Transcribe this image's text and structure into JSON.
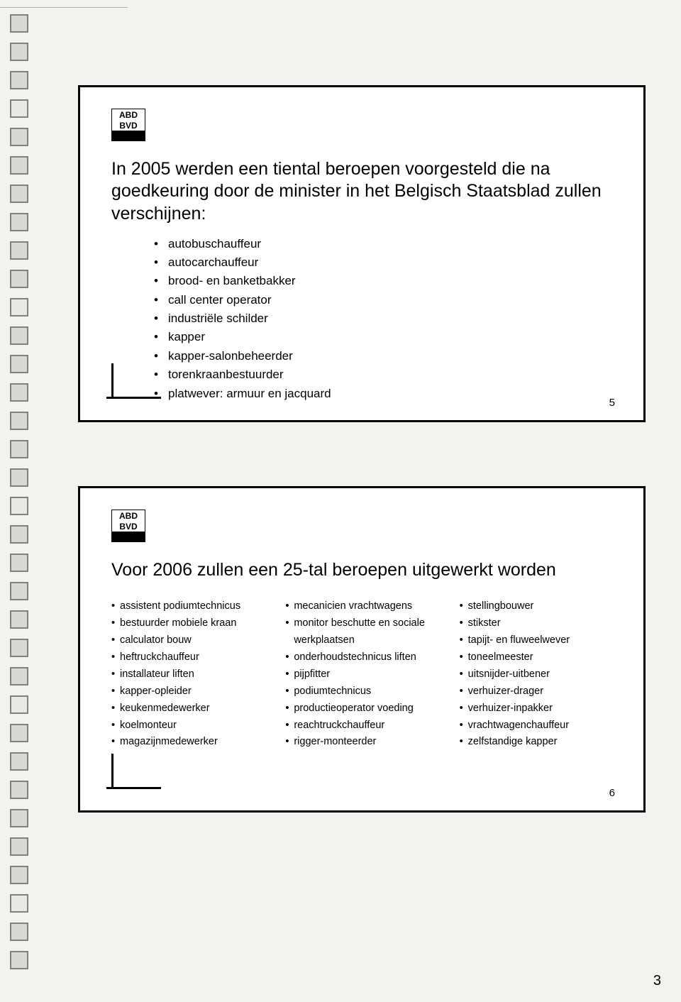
{
  "page_number": "3",
  "logo": {
    "line1": "ABD",
    "line2": "BVD"
  },
  "punch_hole_count": 34,
  "slide1": {
    "number": "5",
    "title": "In 2005 werden een tiental beroepen voorgesteld die na goedkeuring door de minister in het Belgisch Staatsblad zullen verschijnen:",
    "items": [
      "autobuschauffeur",
      "autocarchauffeur",
      "brood- en banketbakker",
      "call center operator",
      "industriële schilder",
      "kapper",
      "kapper-salonbeheerder",
      "torenkraanbestuurder",
      "platwever: armuur en jacquard"
    ]
  },
  "slide2": {
    "number": "6",
    "title": "Voor 2006 zullen een 25-tal beroepen uitgewerkt worden",
    "col1": [
      "assistent podiumtechnicus",
      "bestuurder mobiele kraan",
      "calculator bouw",
      "heftruckchauffeur",
      "installateur liften",
      "kapper-opleider",
      "keukenmedewerker",
      "koelmonteur",
      "magazijnmedewerker"
    ],
    "col2": [
      "mecanicien vrachtwagens",
      "monitor beschutte en sociale werkplaatsen",
      "onderhoudstechnicus liften",
      "pijpfitter",
      "podiumtechnicus",
      "productieoperator voeding",
      "reachtruckchauffeur",
      "rigger-monteerder"
    ],
    "col3": [
      "stellingbouwer",
      "stikster",
      "tapijt- en fluweelwever",
      "toneelmeester",
      "uitsnijder-uitbener",
      "verhuizer-drager",
      "verhuizer-inpakker",
      "vrachtwagenchauffeur",
      "zelfstandige kapper"
    ]
  },
  "colors": {
    "page_bg": "#f2f2ee",
    "slide_bg": "#ffffff",
    "border": "#000000",
    "text": "#000000",
    "hole_border": "#808080",
    "hole_fill": "#d8d8d4"
  }
}
